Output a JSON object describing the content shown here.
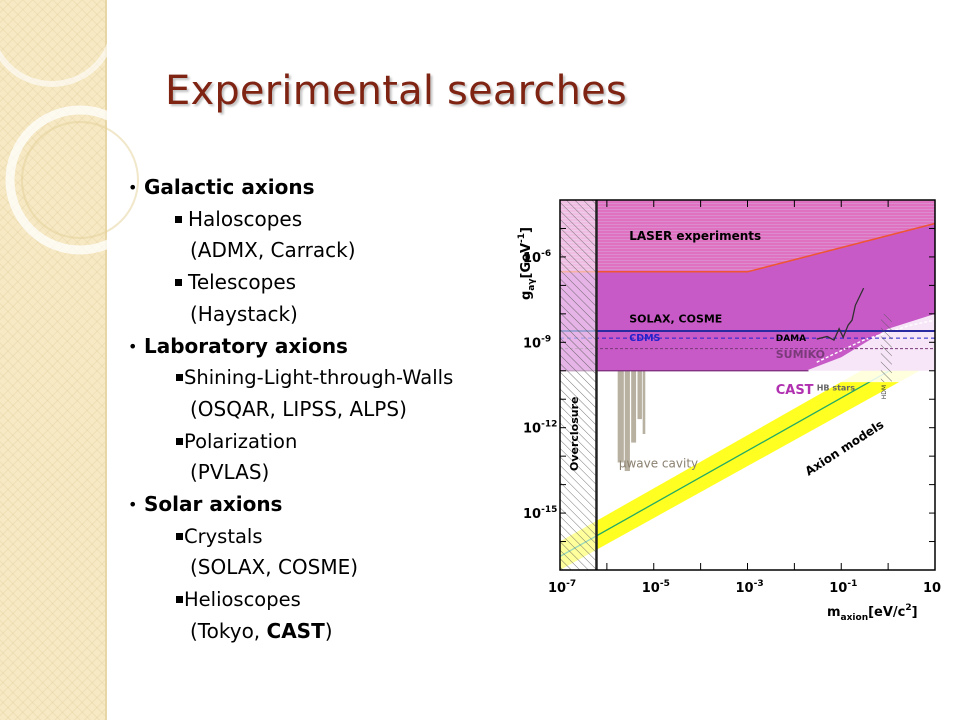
{
  "slide": {
    "title": "Experimental searches"
  },
  "bullets": {
    "galactic": {
      "heading": "Galactic axions",
      "items": [
        {
          "label": "Haloscopes",
          "detail": "(ADMX, Carrack)"
        },
        {
          "label": "Telescopes",
          "detail": "(Haystack)"
        }
      ]
    },
    "laboratory": {
      "heading": "Laboratory axions",
      "items": [
        {
          "label": "Shining-Light-through-Walls",
          "detail": "(OSQAR, LIPSS,  ALPS)"
        },
        {
          "label": "Polarization",
          "detail": "(PVLAS)"
        }
      ]
    },
    "solar": {
      "heading": "Solar axions",
      "items": [
        {
          "label": "Crystals",
          "detail": "(SOLAX, COSME)"
        },
        {
          "label": "Helioscopes",
          "detail_prefix": "(Tokyo, ",
          "detail_bold": "CAST",
          "detail_suffix": ")"
        }
      ]
    }
  },
  "chart_data": {
    "type": "area",
    "xlabel_main": "m",
    "xlabel_sub": "axion",
    "xlabel_unit": "[eV/c",
    "xlabel_unit_sup": "2",
    "xlabel_unit_end": "]",
    "ylabel_main": "g",
    "ylabel_sub": "aγ",
    "ylabel_unit": "[GeV",
    "ylabel_unit_sup": "-1",
    "ylabel_unit_end": "]",
    "x_scale": "log",
    "y_scale": "log",
    "xlim": [
      1e-07,
      10
    ],
    "ylim": [
      1e-17,
      0.0001
    ],
    "x_ticks": [
      {
        "value": 1e-07,
        "base": "10",
        "exp": "-7"
      },
      {
        "value": 1e-05,
        "base": "10",
        "exp": "-5"
      },
      {
        "value": 0.001,
        "base": "10",
        "exp": "-3"
      },
      {
        "value": 0.1,
        "base": "10",
        "exp": "-1"
      },
      {
        "value": 10,
        "base": "10",
        "exp": ""
      }
    ],
    "y_ticks": [
      {
        "value": 1e-06,
        "base": "10",
        "exp": "-6"
      },
      {
        "value": 1e-09,
        "base": "10",
        "exp": "-9"
      },
      {
        "value": 1e-12,
        "base": "10",
        "exp": "-12"
      },
      {
        "value": 1e-15,
        "base": "10",
        "exp": "-15"
      }
    ],
    "regions": [
      {
        "name": "LASER experiments",
        "color": "#c85ac8"
      },
      {
        "name": "SOLAX, COSME",
        "color": "#2a2aa0"
      },
      {
        "name": "CDMS",
        "color": "#2222cc"
      },
      {
        "name": "DAMA",
        "color": "#303030"
      },
      {
        "name": "SUMIKO",
        "color": "#7a3a7a"
      },
      {
        "name": "CAST",
        "color": "#b030b0"
      },
      {
        "name": "HB stars",
        "color": "#ffffff"
      },
      {
        "name": "HDM",
        "color": "#666666"
      },
      {
        "name": "Overclosure",
        "color": "#000000"
      },
      {
        "name": "µwave cavity",
        "color": "#b8b0a0"
      },
      {
        "name": "Axion models",
        "color": "#ffff22"
      }
    ],
    "annotations": {
      "laser": "LASER experiments",
      "solax": "SOLAX, COSME",
      "cdms": "CDMS",
      "dama": "DAMA",
      "sumiko": "SUMIKO",
      "cast": "CAST",
      "hb": "HB stars",
      "hdm": "HDM",
      "overclosure": "Overclosure",
      "cavity": "µwave cavity",
      "axion": "Axion models"
    },
    "bounds": {
      "laser_limit_flat": 3e-07,
      "laser_limit_knee_mass": 0.001,
      "solax_limit": 2.5e-09,
      "cdms_limit": 1.4e-09,
      "cast_limit": 1e-10,
      "overclosure_mass": 6e-07
    },
    "axion_band": {
      "lower": [
        [
          1e-07,
          1e-17
        ],
        [
          10,
          2e-10
        ]
      ],
      "upper": [
        [
          1e-07,
          1e-16
        ],
        [
          10,
          3e-09
        ]
      ],
      "center": [
        [
          1e-07,
          3e-17
        ],
        [
          10,
          8e-10
        ]
      ]
    },
    "cavity_bars": [
      {
        "x0": 1.7e-06,
        "x1": 2.3e-06,
        "ymin": 6e-14
      },
      {
        "x0": 2.4e-06,
        "x1": 3.1e-06,
        "ymin": 3e-14
      },
      {
        "x0": 3.3e-06,
        "x1": 4.2e-06,
        "ymin": 3e-13
      },
      {
        "x0": 4.5e-06,
        "x1": 5.6e-06,
        "ymin": 2e-12
      },
      {
        "x0": 5.8e-06,
        "x1": 6.6e-06,
        "ymin": 6e-13
      }
    ]
  }
}
